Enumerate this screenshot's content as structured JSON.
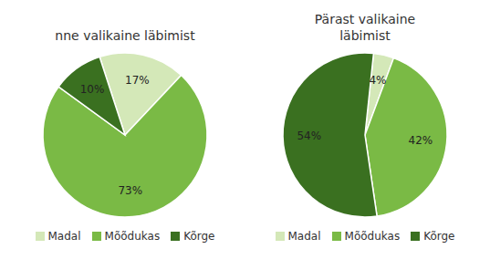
{
  "chart_data": [
    {
      "type": "pie",
      "title": "nne valikaine läbimist",
      "categories": [
        "Madal",
        "Mõõdukas",
        "Kõrge"
      ],
      "values": [
        17,
        73,
        10
      ],
      "value_labels": [
        "17%",
        "73%",
        "10%"
      ],
      "colors": [
        "#d4e8b8",
        "#7aba45",
        "#3a7020"
      ],
      "data_labels": true,
      "legend": "bottom"
    },
    {
      "type": "pie",
      "title": "Pärast valikaine\nläbimist",
      "categories": [
        "Madal",
        "Mõõdukas",
        "Kõrge"
      ],
      "values": [
        4,
        42,
        54
      ],
      "value_labels": [
        "4%",
        "42%",
        "54%"
      ],
      "colors": [
        "#d4e8b8",
        "#7aba45",
        "#3a7020"
      ],
      "data_labels": true,
      "legend": "bottom"
    }
  ]
}
